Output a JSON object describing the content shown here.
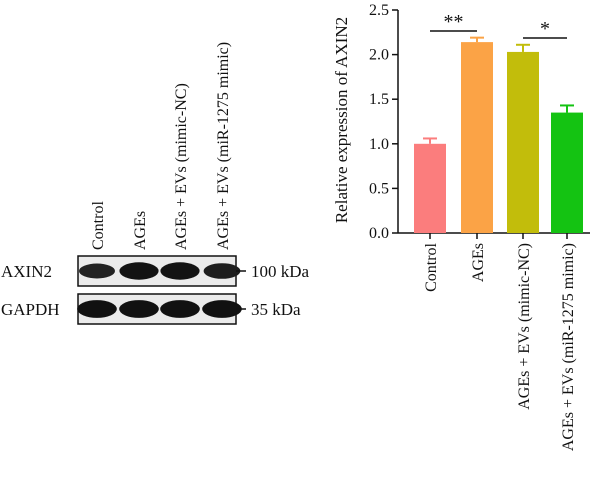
{
  "blot": {
    "lanes": [
      "Control",
      "AGEs",
      "AGEs + EVs (mimic-NC)",
      "AGEs + EVs (miR-1275 mimic)"
    ],
    "rows": [
      {
        "label": "AXIN2",
        "marker": "100 kDa",
        "intensity": [
          0.75,
          0.95,
          0.95,
          0.8
        ]
      },
      {
        "label": "GAPDH",
        "marker": "35 kDa",
        "intensity": [
          0.98,
          0.98,
          0.98,
          0.98
        ]
      }
    ]
  },
  "chart_data": {
    "type": "bar",
    "categories": [
      "Control",
      "AGEs",
      "AGEs + EVs (mimic-NC)",
      "AGEs + EVs (miR-1275 mimic)"
    ],
    "values": [
      1.0,
      2.14,
      2.03,
      1.35
    ],
    "errors": [
      0.06,
      0.05,
      0.08,
      0.08
    ],
    "colors": [
      "#fb7d7d",
      "#fba346",
      "#c2bd0b",
      "#14c312"
    ],
    "ylabel": "Relative expression of AXIN2",
    "ylim": [
      0,
      2.5
    ],
    "yticks": [
      0.0,
      0.5,
      1.0,
      1.5,
      2.0,
      2.5
    ],
    "ytick_labels": [
      "0.0",
      "0.5",
      "1.0",
      "1.5",
      "2.0",
      "2.5"
    ],
    "significance": [
      {
        "from": 0,
        "to": 1,
        "label": "**"
      },
      {
        "from": 2,
        "to": 3,
        "label": "*"
      }
    ]
  }
}
